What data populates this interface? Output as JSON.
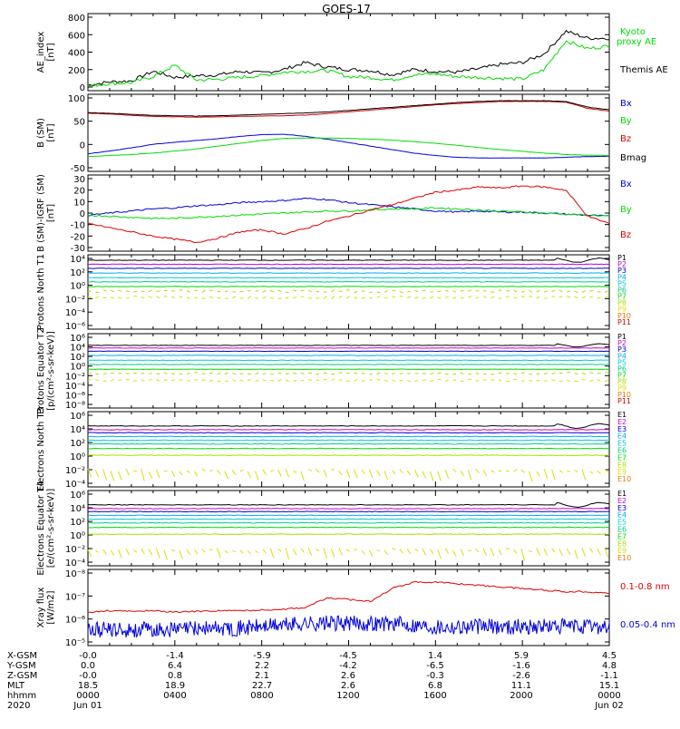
{
  "title": "GOES-17",
  "colors": {
    "black": "#000000",
    "red": "#dd0000",
    "green": "#00dd00",
    "blue": "#0000dd",
    "bands": [
      "#000000",
      "#cc00cc",
      "#0000cc",
      "#00aaff",
      "#00cccc",
      "#00cc88",
      "#00dd00",
      "#aadd00",
      "#dddd00",
      "#ee7700",
      "#cc0000"
    ]
  },
  "chart_data": [
    {
      "type": "line",
      "panel": "ae",
      "ylabel": "AE_index [nT]",
      "yticks": [
        "800",
        "600",
        "400",
        "200",
        "0"
      ],
      "ylim": [
        0,
        800
      ],
      "x": [
        0,
        1,
        2,
        3,
        4,
        5,
        6,
        7,
        8,
        9,
        10,
        11,
        12,
        13,
        14,
        15,
        16,
        17,
        18,
        19,
        20,
        21,
        22,
        23,
        24
      ],
      "series": [
        {
          "name": "Themis AE",
          "color": "black",
          "values": [
            20,
            60,
            70,
            180,
            110,
            130,
            140,
            180,
            160,
            200,
            280,
            230,
            200,
            190,
            140,
            200,
            180,
            170,
            210,
            260,
            280,
            380,
            640,
            560,
            560
          ]
        },
        {
          "name": "Kyoto proxy AE",
          "color": "green",
          "values": [
            10,
            40,
            50,
            120,
            250,
            80,
            90,
            110,
            130,
            170,
            180,
            190,
            120,
            110,
            80,
            140,
            150,
            120,
            110,
            100,
            90,
            200,
            530,
            440,
            470
          ]
        }
      ]
    },
    {
      "type": "line",
      "panel": "bsm",
      "ylabel": "B (SM) [nT]",
      "yticks": [
        "100",
        "50",
        "0",
        "-50"
      ],
      "ylim": [
        -60,
        140
      ],
      "x": [
        0,
        1,
        2,
        3,
        4,
        5,
        6,
        7,
        8,
        9,
        10,
        11,
        12,
        13,
        14,
        15,
        16,
        17,
        18,
        19,
        20,
        21,
        22,
        23,
        24
      ],
      "series": [
        {
          "name": "Bx",
          "color": "blue",
          "values": [
            -20,
            -12,
            -3,
            7,
            13,
            18,
            23,
            30,
            35,
            36,
            30,
            22,
            12,
            2,
            -8,
            -18,
            -25,
            -30,
            -32,
            -32,
            -32,
            -32,
            -30,
            -28,
            -27
          ]
        },
        {
          "name": "By",
          "color": "green",
          "values": [
            -28,
            -25,
            -22,
            -18,
            -12,
            -6,
            2,
            10,
            18,
            24,
            25,
            25,
            24,
            22,
            19,
            15,
            10,
            4,
            -2,
            -8,
            -13,
            -18,
            -22,
            -24,
            -25
          ]
        },
        {
          "name": "Bz",
          "color": "red",
          "values": [
            96,
            94,
            90,
            87,
            86,
            85,
            86,
            87,
            88,
            89,
            91,
            95,
            100,
            105,
            110,
            115,
            120,
            124,
            127,
            130,
            130,
            130,
            128,
            110,
            102
          ]
        },
        {
          "name": "Bmag",
          "color": "black",
          "values": [
            98,
            96,
            93,
            90,
            89,
            88,
            89,
            91,
            93,
            95,
            97,
            100,
            104,
            109,
            113,
            118,
            122,
            127,
            130,
            132,
            132,
            132,
            130,
            114,
            106
          ]
        }
      ]
    },
    {
      "type": "line",
      "panel": "bdiff",
      "ylabel": "B (SM)-IGRF (SM) [nT]",
      "yticks": [
        "30",
        "20",
        "10",
        "0",
        "-10",
        "-20",
        "-30"
      ],
      "ylim": [
        -33,
        33
      ],
      "x": [
        0,
        1,
        2,
        3,
        4,
        5,
        6,
        7,
        8,
        9,
        10,
        11,
        12,
        13,
        14,
        15,
        16,
        17,
        18,
        19,
        20,
        21,
        22,
        23,
        24
      ],
      "series": [
        {
          "name": "Bx",
          "color": "blue",
          "values": [
            -2,
            0,
            2,
            4,
            5,
            7,
            8,
            10,
            11,
            12,
            14,
            13,
            10,
            8,
            6,
            4,
            2,
            1,
            2,
            1,
            1,
            0,
            -1,
            -2,
            -3
          ]
        },
        {
          "name": "By",
          "color": "green",
          "values": [
            -2,
            -3,
            -4,
            -5,
            -5,
            -4,
            -3,
            -2,
            -1,
            0,
            1,
            2,
            2,
            3,
            4,
            4,
            5,
            4,
            3,
            2,
            1,
            0,
            -1,
            -2,
            -3
          ]
        },
        {
          "name": "Bz",
          "color": "red",
          "values": [
            -10,
            -14,
            -18,
            -22,
            -25,
            -28,
            -24,
            -18,
            -16,
            -20,
            -15,
            -8,
            -3,
            3,
            8,
            14,
            20,
            22,
            25,
            24,
            26,
            25,
            22,
            -3,
            -10
          ]
        }
      ]
    },
    {
      "type": "line",
      "panel": "p1",
      "ylabel": "Protons North T1",
      "yscale": "log",
      "yticks": [
        "10⁴",
        "10²",
        "10⁰",
        "10⁻²",
        "10⁻⁴",
        "10⁻⁶"
      ],
      "ylim_exp": [
        -7,
        4
      ],
      "levels": [
        3.2,
        2.6,
        2.0,
        1.3,
        0.6,
        0.0,
        -0.7,
        -1.4,
        -2.3,
        -99,
        -99
      ],
      "noisy": [
        false,
        false,
        false,
        false,
        false,
        false,
        false,
        true,
        true,
        false,
        false
      ],
      "legend": [
        "P1",
        "P2",
        "P3",
        "P4",
        "P5",
        "P6",
        "P7",
        "P8",
        "P9",
        "P10",
        "P11"
      ]
    },
    {
      "type": "line",
      "panel": "p2",
      "ylabel": "Protons Equator T2 [p/(cm²-s-sr-keV)]",
      "yscale": "log",
      "yticks": [
        "10⁶",
        "10⁴",
        "10²",
        "10⁰",
        "10⁻²",
        "10⁻⁴",
        "10⁻⁶",
        "10⁻⁸"
      ],
      "ylim_exp": [
        -8,
        6
      ],
      "levels": [
        3.8,
        3.3,
        2.7,
        1.9,
        1.0,
        0.2,
        -0.7,
        -1.5,
        -2.8,
        -99,
        -99
      ],
      "noisy": [
        false,
        false,
        false,
        false,
        false,
        false,
        false,
        true,
        true,
        false,
        false
      ],
      "legend": [
        "P1",
        "P2",
        "P3",
        "P4",
        "P5",
        "P6",
        "P7",
        "P8",
        "P9",
        "P10",
        "P11"
      ]
    },
    {
      "type": "line",
      "panel": "e1",
      "ylabel": "Electrons North T3",
      "yscale": "log",
      "yticks": [
        "10⁶",
        "10⁴",
        "10²",
        "10⁰",
        "10⁻²",
        "10⁻⁴"
      ],
      "ylim_exp": [
        -4,
        6
      ],
      "levels": [
        4.1,
        3.6,
        3.2,
        2.7,
        2.2,
        1.7,
        1.1,
        0.2,
        -1.8,
        -99
      ],
      "noisy": [
        false,
        false,
        false,
        false,
        false,
        false,
        false,
        false,
        true,
        false
      ],
      "legend": [
        "E1",
        "E2",
        "E3",
        "E4",
        "E5",
        "E6",
        "E7",
        "E8",
        "E9",
        "E10"
      ]
    },
    {
      "type": "line",
      "panel": "e2",
      "ylabel": "Electrons Equator T4 [e/(cm²-s-sr-keV)]",
      "yscale": "log",
      "yticks": [
        "10⁶",
        "10⁴",
        "10²",
        "10⁰",
        "10⁻²",
        "10⁻⁴"
      ],
      "ylim_exp": [
        -4,
        6
      ],
      "levels": [
        4.1,
        3.6,
        3.2,
        2.7,
        2.2,
        1.7,
        1.1,
        0.2,
        -1.8,
        -99
      ],
      "noisy": [
        false,
        false,
        false,
        false,
        false,
        false,
        false,
        false,
        true,
        false
      ],
      "legend": [
        "E1",
        "E2",
        "E3",
        "E4",
        "E5",
        "E6",
        "E7",
        "E8",
        "E9",
        "E10"
      ]
    },
    {
      "type": "line",
      "panel": "xray",
      "ylabel": "Xray flux [W/m2]",
      "yscale": "log",
      "yticks": [
        "10⁻⁸",
        "10⁻⁷",
        "10⁻⁶",
        "10⁻⁵"
      ],
      "ylim_exp": [
        -9,
        -8
      ],
      "x": [
        0,
        1,
        2,
        3,
        4,
        5,
        6,
        7,
        8,
        9,
        10,
        11,
        12,
        13,
        14,
        15,
        16,
        17,
        18,
        19,
        20,
        21,
        22,
        23,
        24
      ],
      "series": [
        {
          "name": "0.1-0.8 nm",
          "color": "red",
          "values": [
            -5.95,
            -5.9,
            -5.92,
            -5.9,
            -5.95,
            -5.92,
            -5.9,
            -5.9,
            -5.88,
            -5.85,
            -5.8,
            -5.5,
            -5.55,
            -5.6,
            -5.2,
            -5.0,
            -5.0,
            -5.05,
            -5.1,
            -5.15,
            -5.2,
            -5.25,
            -5.3,
            -5.3,
            -5.35
          ]
        },
        {
          "name": "0.05-0.4 nm",
          "color": "blue",
          "values": [
            -6.5,
            -6.5,
            -6.5,
            -6.5,
            -6.5,
            -6.45,
            -6.45,
            -6.45,
            -6.4,
            -6.35,
            -6.3,
            -6.3,
            -6.3,
            -6.3,
            -6.3,
            -6.35,
            -6.4,
            -6.4,
            -6.4,
            -6.4,
            -6.4,
            -6.4,
            -6.4,
            -6.4,
            -6.4
          ]
        }
      ]
    }
  ],
  "footer": {
    "rows": [
      {
        "label": "X-GSM",
        "values": [
          "-0.0",
          "-1.4",
          "-5.9",
          "-4.5",
          "1.4",
          "5.9",
          "4.5"
        ]
      },
      {
        "label": "Y-GSM",
        "values": [
          "0.0",
          "6.4",
          "2.2",
          "-4.2",
          "-6.5",
          "-1.6",
          "4.8"
        ]
      },
      {
        "label": "Z-GSM",
        "values": [
          "-0.0",
          "0.8",
          "2.1",
          "2.6",
          "-0.3",
          "-2.6",
          "-1.1"
        ]
      },
      {
        "label": "MLT",
        "values": [
          "18.5",
          "18.9",
          "22.7",
          "2.6",
          "6.8",
          "11.1",
          "15.1"
        ]
      },
      {
        "label": "hhmm",
        "values": [
          "0000",
          "0400",
          "0800",
          "1200",
          "1600",
          "2000",
          "0000"
        ]
      },
      {
        "label": "2020",
        "values": [
          "Jun 01",
          "",
          "",
          "",
          "",
          "",
          "Jun 02"
        ]
      }
    ]
  },
  "ae_legend_top": [
    "Kyoto",
    "proxy AE"
  ]
}
